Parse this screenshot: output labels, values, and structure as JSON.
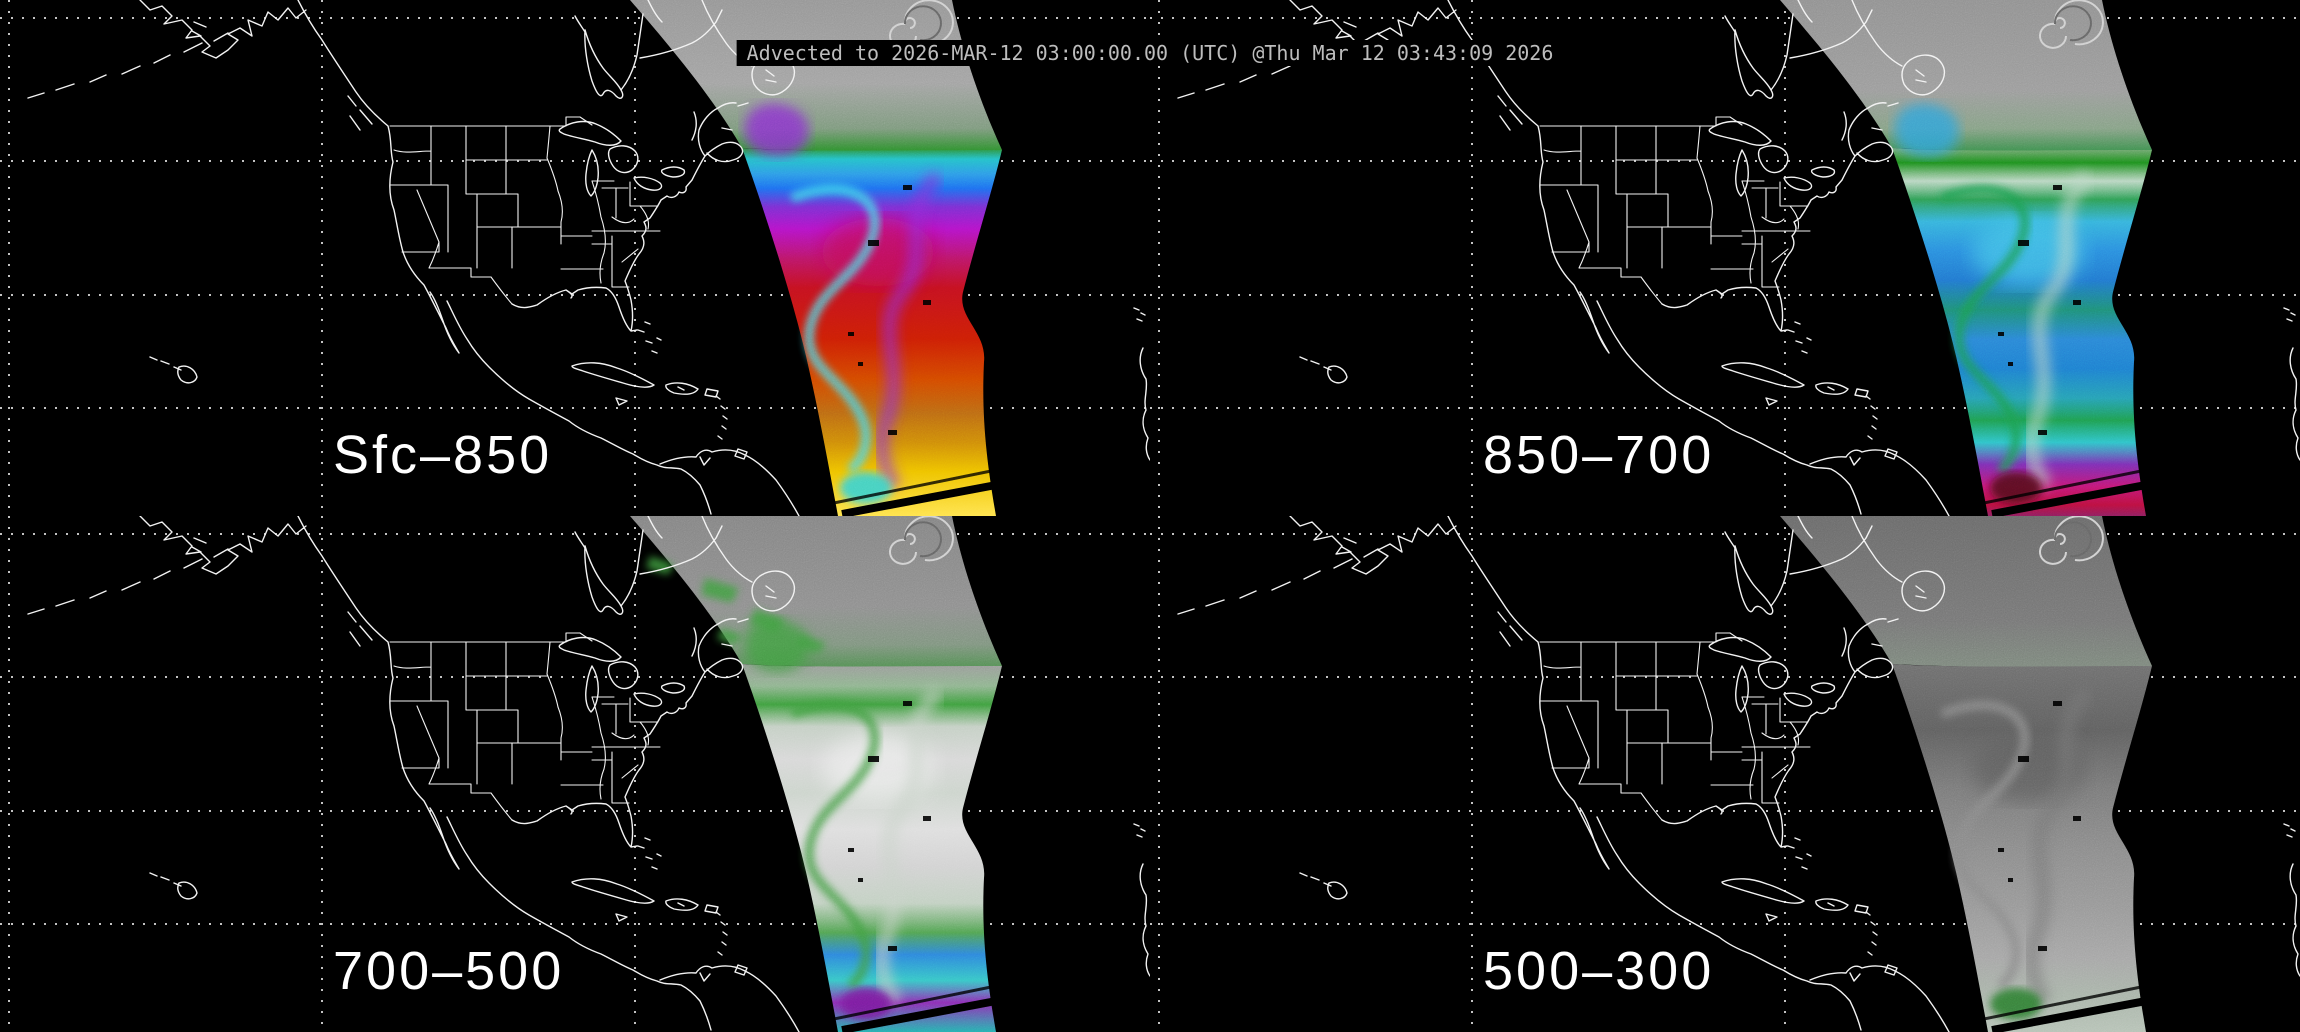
{
  "header": {
    "title": "Advected to 2026-MAR-12 03:00:00.00 (UTC) @Thu Mar 12 03:43:09 2026"
  },
  "grid": {
    "vlines": [
      9,
      322,
      635,
      948
    ],
    "hlines": [
      18,
      161,
      295,
      408
    ]
  },
  "colors": {
    "background": "#000000",
    "map_line": "#f2f2f2",
    "grid_dot": "#e6e6e6",
    "label_text": "#ffffff",
    "title_fg": "#bdbdbd",
    "title_bg": "#000000",
    "cloud_gray": "#8f8f8f"
  },
  "panels": [
    {
      "id": "sfc-850",
      "label": "Sfc–850",
      "gradient_main": [
        [
          "0",
          "#2e8f2e"
        ],
        [
          "0.03",
          "#25c0c8"
        ],
        [
          "0.07",
          "#2e9ce6"
        ],
        [
          "0.11",
          "#1e6ef0"
        ],
        [
          "0.16",
          "#7a2fd2"
        ],
        [
          "0.22",
          "#b414c8"
        ],
        [
          "0.30",
          "#bb1668"
        ],
        [
          "0.38",
          "#c41120"
        ],
        [
          "0.52",
          "#cc1f05"
        ],
        [
          "0.63",
          "#d34a00"
        ],
        [
          "0.72",
          "#bc6a14"
        ],
        [
          "0.80",
          "#cf8c0a"
        ],
        [
          "0.88",
          "#eec200"
        ],
        [
          "1",
          "#ffe34d"
        ]
      ],
      "gradient_wedge": [
        [
          "0",
          "#969696"
        ],
        [
          "0.55",
          "#a3a3a3"
        ],
        [
          "0.85",
          "#7d997d"
        ],
        [
          "1",
          "#2e8f2e"
        ]
      ],
      "deco": {
        "swirl1": "#3fd9e8",
        "swirl2": "#8f2bd8",
        "blob": "#c21158",
        "accent": "#35d2d2",
        "west_patch": "#8c2fd2",
        "scatter": null
      }
    },
    {
      "id": "850-700",
      "label": "850–700",
      "gradient_main": [
        [
          "0",
          "#79a979"
        ],
        [
          "0.04",
          "#1f8f1f"
        ],
        [
          "0.09",
          "#b9d6c2"
        ],
        [
          "0.14",
          "#2f9e55"
        ],
        [
          "0.20",
          "#37b3dc"
        ],
        [
          "0.28",
          "#2b8ede"
        ],
        [
          "0.36",
          "#2277cf"
        ],
        [
          "0.44",
          "#1f8f77"
        ],
        [
          "0.52",
          "#2b86d6"
        ],
        [
          "0.60",
          "#1f7fd0"
        ],
        [
          "0.68",
          "#27a0b4"
        ],
        [
          "0.74",
          "#1f9e50"
        ],
        [
          "0.80",
          "#2fc3c8"
        ],
        [
          "0.86",
          "#7c2fb4"
        ],
        [
          "0.92",
          "#c21877"
        ],
        [
          "0.97",
          "#bb1040"
        ],
        [
          "1",
          "#8f1f5f"
        ]
      ],
      "gradient_wedge": [
        [
          "0",
          "#919191"
        ],
        [
          "0.60",
          "#9c9c9c"
        ],
        [
          "0.85",
          "#86a186"
        ],
        [
          "1",
          "#3f8f4f"
        ]
      ],
      "deco": {
        "swirl1": "#1f9e50",
        "swirl2": "#bcd8c6",
        "blob": "#45c3e6",
        "accent": "#550a1e",
        "west_patch": "#2fa3dc",
        "scatter": null
      }
    },
    {
      "id": "700-500",
      "label": "700–500",
      "gradient_main": [
        [
          "0",
          "#9b9b9b"
        ],
        [
          "0.06",
          "#8fb48f"
        ],
        [
          "0.11",
          "#3f9e3f"
        ],
        [
          "0.17",
          "#c4cfc4"
        ],
        [
          "0.26",
          "#d8d8d8"
        ],
        [
          "0.35",
          "#ccd4cc"
        ],
        [
          "0.45",
          "#dedede"
        ],
        [
          "0.55",
          "#d2d2d2"
        ],
        [
          "0.65",
          "#c2d0c2"
        ],
        [
          "0.73",
          "#52a352"
        ],
        [
          "0.79",
          "#2e86dc"
        ],
        [
          "0.86",
          "#38c6c6"
        ],
        [
          "0.92",
          "#8c2fb4"
        ],
        [
          "1",
          "#27b0b0"
        ]
      ],
      "gradient_wedge": [
        [
          "0",
          "#848484"
        ],
        [
          "0.60",
          "#8f8f8f"
        ],
        [
          "0.85",
          "#7f947f"
        ],
        [
          "1",
          "#558f55"
        ]
      ],
      "deco": {
        "swirl1": "#3f9e3f",
        "swirl2": "#c8d2c8",
        "blob": "#ececec",
        "accent": "#7a1f9e",
        "west_patch": "#3f9e3f",
        "scatter": "#3f9e3f"
      }
    },
    {
      "id": "500-300",
      "label": "500–300",
      "gradient_main": [
        [
          "0",
          "#6f6f6f"
        ],
        [
          "0.18",
          "#606060"
        ],
        [
          "0.34",
          "#7a7a7a"
        ],
        [
          "0.50",
          "#8b8b8b"
        ],
        [
          "0.66",
          "#989898"
        ],
        [
          "0.80",
          "#a6a6a6"
        ],
        [
          "0.90",
          "#a9b4a9"
        ],
        [
          "1",
          "#b6c2b6"
        ]
      ],
      "gradient_wedge": [
        [
          "0",
          "#6b6b6b"
        ],
        [
          "0.70",
          "#777777"
        ],
        [
          "1",
          "#7d887d"
        ]
      ],
      "deco": {
        "swirl1": "#8a8a8a",
        "swirl2": "#747474",
        "blob": "#5e5e5e",
        "accent": "#2e7d32",
        "west_patch": null,
        "scatter": null
      }
    }
  ]
}
